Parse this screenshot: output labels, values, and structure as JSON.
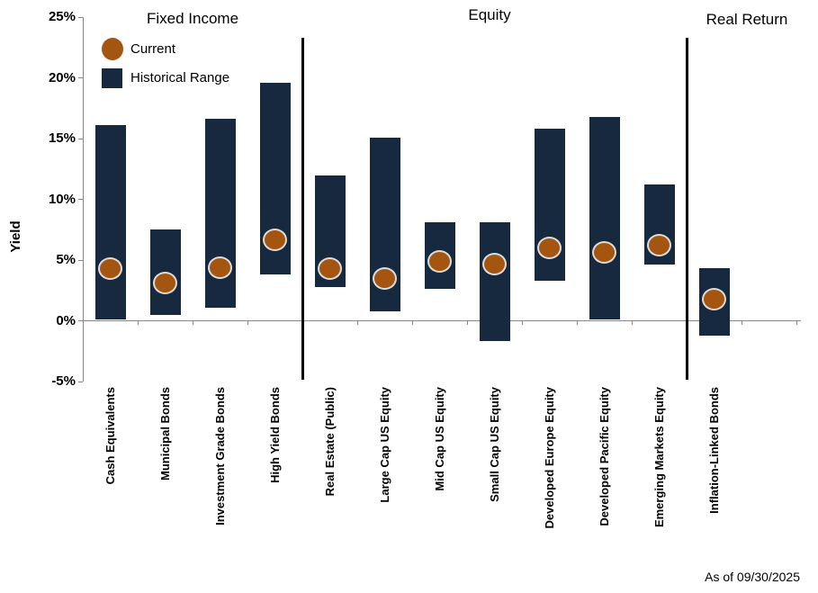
{
  "legend": {
    "current_label": "Current",
    "historical_label": "Historical Range"
  },
  "footer": {
    "as_of": "As of 09/30/2025"
  },
  "chart_data": {
    "type": "bar",
    "subtype": "floating-range-bars-with-current-point",
    "title": "",
    "xlabel": "",
    "ylabel": "Yield",
    "ylim": [
      -5,
      25
    ],
    "grid": false,
    "legend_position": "top-left",
    "yticks": [
      25,
      20,
      15,
      10,
      5,
      0,
      -5
    ],
    "ytick_labels": [
      "25%",
      "20%",
      "15%",
      "10%",
      "5%",
      "0%",
      "-5%"
    ],
    "groups": [
      {
        "label": "Fixed Income",
        "categories": [
          "Cash Equivalents",
          "Municipal Bonds",
          "Investment Grade Bonds",
          "High Yield Bonds"
        ],
        "historical_low": [
          0.1,
          0.5,
          1.1,
          3.8
        ],
        "historical_high": [
          16.1,
          7.5,
          16.6,
          19.6
        ],
        "current": [
          4.3,
          3.1,
          4.4,
          6.7
        ]
      },
      {
        "label": "Equity",
        "categories": [
          "Real Estate (Public)",
          "Large Cap US Equity",
          "Mid Cap US Equity",
          "Small Cap US Equity",
          "Developed Europe Equity",
          "Developed Pacific Equity",
          "Emerging Markets Equity"
        ],
        "historical_low": [
          2.8,
          0.8,
          2.6,
          -1.7,
          3.3,
          0.1,
          4.6
        ],
        "historical_high": [
          12.0,
          15.1,
          8.1,
          8.1,
          15.8,
          16.8,
          11.2
        ],
        "current": [
          4.3,
          3.5,
          4.9,
          4.7,
          6.0,
          5.6,
          6.2
        ]
      },
      {
        "label": "Real Return",
        "categories": [
          "Inflation-Linked Bonds"
        ],
        "historical_low": [
          -1.2
        ],
        "historical_high": [
          4.3
        ],
        "current": [
          1.8
        ]
      }
    ],
    "series": [
      {
        "name": "Historical Range",
        "type": "range"
      },
      {
        "name": "Current",
        "type": "point"
      }
    ],
    "colors": {
      "historical_range": "#16293E",
      "current": "#A4550F",
      "current_outline": "#DCDCDC",
      "axis": "#868686",
      "separator": "#000000",
      "text": "#000000"
    }
  }
}
